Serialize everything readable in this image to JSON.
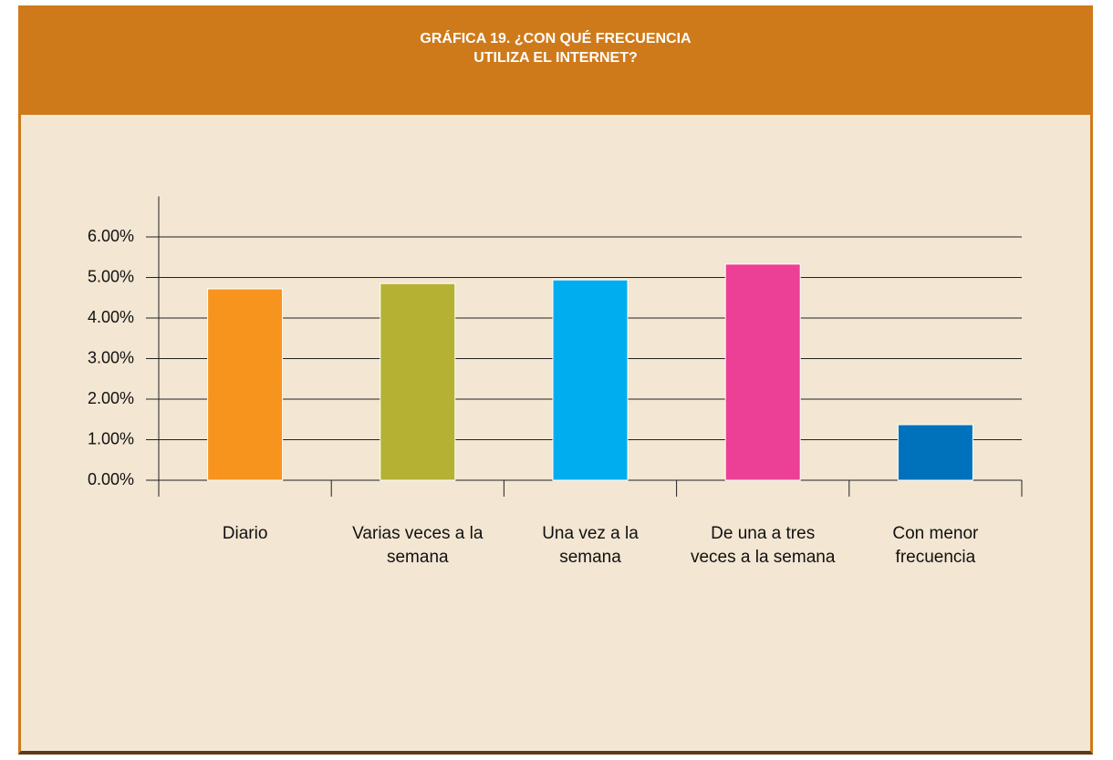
{
  "chart_data": {
    "type": "bar",
    "title": "GRÁFICA 19. ¿CON QUÉ FRECUENCIA UTILIZA EL INTERNET?",
    "categories": [
      "Diario",
      "Varias veces a la semana",
      "Una vez a la semana",
      "De una a tres veces a la semana",
      "Con menor frecuencia"
    ],
    "values": [
      4.72,
      4.85,
      4.94,
      5.33,
      1.37
    ],
    "colors": [
      "#f7941d",
      "#b5b233",
      "#00aeef",
      "#ec3f96",
      "#0072bc"
    ],
    "ylim": [
      0,
      7
    ],
    "yticks": [
      {
        "value": 0,
        "label": "0.00%"
      },
      {
        "value": 1,
        "label": "1.00%"
      },
      {
        "value": 2,
        "label": "2.00%"
      },
      {
        "value": 3,
        "label": "3.00%"
      },
      {
        "value": 4,
        "label": "4.00%"
      },
      {
        "value": 5,
        "label": "5.00%"
      },
      {
        "value": 6,
        "label": "6.00%"
      }
    ],
    "grid": true
  }
}
